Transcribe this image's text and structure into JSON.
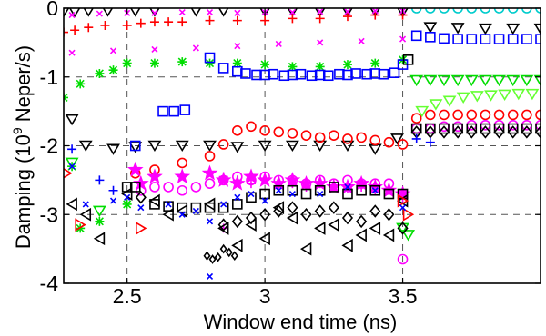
{
  "chart_data": {
    "type": "scatter",
    "title": "",
    "xlabel": "Window end time (ns)",
    "ylabel": "Damping (10",
    "ylabel_superscript": "9",
    "ylabel_suffix": " Neper/s)",
    "xlim": [
      2.27,
      4.0
    ],
    "ylim": [
      -4,
      0
    ],
    "xticks": [
      2.5,
      3,
      3.5
    ],
    "xtick_labels": [
      "2.5",
      "3",
      "3.5"
    ],
    "yticks": [
      0,
      -1,
      -2,
      -3,
      -4
    ],
    "ytick_labels": [
      "0",
      "-1",
      "-2",
      "-3",
      "-4"
    ],
    "grid": true,
    "legend": "none",
    "series": [
      {
        "marker": "triangle-down",
        "color": "#000000",
        "x": [
          2.27,
          2.31,
          2.36,
          2.43,
          2.53,
          2.6,
          2.75,
          2.85,
          3.0,
          3.1,
          3.2,
          3.3,
          3.4,
          3.5,
          3.6,
          3.7,
          3.8,
          3.9,
          4.0,
          2.3,
          2.35,
          2.45,
          2.53,
          2.6,
          2.7,
          2.8,
          2.9,
          3.0,
          3.1,
          3.2,
          3.3,
          3.4,
          3.48
        ],
        "y": [
          -0.05,
          -0.05,
          -0.04,
          -0.04,
          -0.04,
          -0.04,
          -0.04,
          -0.04,
          -0.04,
          -0.04,
          -0.04,
          -0.04,
          -0.04,
          -0.05,
          -0.28,
          -0.29,
          -0.3,
          -0.3,
          -0.3,
          -1.62,
          -2.0,
          -2.05,
          -2.02,
          -2.0,
          -2.0,
          -2.0,
          -2.02,
          -2.0,
          -2.0,
          -2.0,
          -2.0,
          -2.05,
          -1.9
        ]
      },
      {
        "marker": "plus",
        "color": "#ff0000",
        "x": [
          2.27,
          2.31,
          2.36,
          2.42,
          2.5,
          2.55,
          2.6,
          2.65,
          2.7,
          2.8,
          2.9,
          3.0,
          3.1,
          3.2,
          3.3,
          3.4,
          3.5
        ],
        "y": [
          -0.35,
          -0.32,
          -0.28,
          -0.25,
          -0.25,
          -0.22,
          -0.2,
          -0.2,
          -0.2,
          -0.18,
          -0.18,
          -0.18,
          -0.15,
          -0.15,
          -0.12,
          -0.1,
          -0.1
        ]
      },
      {
        "marker": "x",
        "color": "#ff00ff",
        "x": [
          2.3,
          2.4,
          2.5,
          2.6,
          2.7,
          2.8,
          2.9,
          3.0,
          3.1,
          3.2,
          3.3,
          3.4,
          3.5,
          2.3,
          2.45,
          2.6,
          2.75,
          2.9,
          3.05,
          3.2,
          3.35,
          3.5
        ],
        "y": [
          -0.1,
          -0.08,
          -0.07,
          -0.07,
          -0.06,
          -0.06,
          -0.07,
          -0.06,
          -0.06,
          -0.05,
          -0.05,
          -0.04,
          -0.04,
          -0.65,
          -0.62,
          -0.6,
          -0.58,
          -0.55,
          -0.52,
          -0.5,
          -0.48,
          -0.45
        ]
      },
      {
        "marker": "asterisk",
        "color": "#00dd00",
        "x": [
          2.27,
          2.33,
          2.4,
          2.45,
          2.5,
          2.6,
          2.7,
          2.8,
          2.9,
          3.0,
          3.1,
          3.2,
          3.3,
          3.4,
          3.5,
          2.3,
          2.33,
          2.4,
          2.5
        ],
        "y": [
          -1.3,
          -1.1,
          -0.95,
          -0.9,
          -0.8,
          -0.8,
          -0.78,
          -0.8,
          -0.8,
          -0.82,
          -0.85,
          -0.85,
          -0.82,
          -0.8,
          -0.75,
          -2.3,
          -3.2,
          -3.1,
          -2.85
        ]
      },
      {
        "marker": "square",
        "color": "#0000ff",
        "x": [
          2.63,
          2.67,
          2.71,
          2.8,
          2.85,
          2.9,
          2.93,
          2.97,
          3.0,
          3.03,
          3.07,
          3.1,
          3.13,
          3.17,
          3.2,
          3.23,
          3.27,
          3.3,
          3.33,
          3.37,
          3.4,
          3.43,
          3.47,
          3.5,
          3.55,
          3.6,
          3.65,
          3.7,
          3.75,
          3.8,
          3.85,
          3.9,
          3.95,
          4.0,
          2.53
        ],
        "y": [
          -1.5,
          -1.5,
          -1.48,
          -0.72,
          -0.87,
          -0.92,
          -0.95,
          -0.97,
          -0.97,
          -0.96,
          -0.98,
          -0.97,
          -0.96,
          -0.98,
          -0.97,
          -0.98,
          -0.96,
          -0.97,
          -0.95,
          -0.96,
          -0.95,
          -0.96,
          -0.94,
          -0.82,
          -0.4,
          -0.42,
          -0.44,
          -0.45,
          -0.45,
          -0.45,
          -0.45,
          -0.45,
          -0.45,
          -0.45,
          -2.0
        ]
      },
      {
        "marker": "circle",
        "color": "#00cccc",
        "x": [
          3.55,
          3.6,
          3.65,
          3.7,
          3.75,
          3.8,
          3.85,
          3.9,
          3.95,
          4.0
        ],
        "y": [
          0.0,
          0.0,
          0.0,
          0.0,
          0.0,
          0.0,
          0.0,
          0.0,
          0.0,
          0.0
        ]
      },
      {
        "marker": "triangle-down",
        "color": "#00dd00",
        "x": [
          3.55,
          3.6,
          3.65,
          3.7,
          3.75,
          3.8,
          3.85,
          3.9,
          3.95,
          4.0,
          3.5,
          3.52,
          2.3,
          2.4
        ],
        "y": [
          -1.05,
          -1.05,
          -1.05,
          -1.05,
          -1.05,
          -1.05,
          -1.05,
          -1.05,
          -1.05,
          -1.05,
          -3.2,
          -3.3,
          -2.25,
          -2.95
        ]
      },
      {
        "marker": "triangle-down",
        "color": "#66ff33",
        "x": [
          3.57,
          3.62,
          3.67,
          3.72,
          3.77,
          3.82,
          3.87,
          3.92,
          3.97
        ],
        "y": [
          -1.5,
          -1.4,
          -1.35,
          -1.3,
          -1.28,
          -1.27,
          -1.26,
          -1.25,
          -1.25
        ]
      },
      {
        "marker": "circle",
        "color": "#ff0000",
        "x": [
          2.53,
          2.6,
          2.7,
          2.8,
          2.85,
          2.9,
          2.95,
          3.0,
          3.05,
          3.1,
          3.15,
          3.2,
          3.25,
          3.3,
          3.35,
          3.4,
          3.45,
          3.5,
          3.55,
          3.6,
          3.65,
          3.7,
          3.75,
          3.8,
          3.85,
          3.9,
          3.95,
          4.0
        ],
        "y": [
          -2.4,
          -2.35,
          -2.25,
          -2.15,
          -1.98,
          -1.78,
          -1.72,
          -1.78,
          -1.8,
          -1.82,
          -1.85,
          -1.88,
          -1.85,
          -1.9,
          -1.88,
          -1.92,
          -1.95,
          -1.98,
          -1.6,
          -1.55,
          -1.55,
          -1.55,
          -1.55,
          -1.55,
          -1.55,
          -1.55,
          -1.55,
          -1.55
        ]
      },
      {
        "marker": "circle",
        "color": "#ff00ff",
        "x": [
          2.55,
          2.6,
          2.65,
          2.7,
          2.75,
          2.8,
          2.85,
          2.9,
          2.95,
          3.0,
          3.05,
          3.1,
          3.15,
          3.2,
          3.25,
          3.3,
          3.35,
          3.4,
          3.45,
          3.5,
          3.55,
          3.6,
          3.65,
          3.7,
          3.75,
          3.8,
          3.85,
          3.9,
          3.95,
          4.0,
          3.5
        ],
        "y": [
          -2.65,
          -2.6,
          -2.6,
          -2.65,
          -2.6,
          -2.55,
          -2.5,
          -2.45,
          -2.5,
          -2.45,
          -2.5,
          -2.5,
          -2.55,
          -2.5,
          -2.55,
          -2.5,
          -2.55,
          -2.55,
          -2.55,
          -2.7,
          -1.75,
          -1.75,
          -1.72,
          -1.72,
          -1.7,
          -1.7,
          -1.7,
          -1.7,
          -1.7,
          -1.7,
          -3.65
        ]
      },
      {
        "marker": "star",
        "color": "#ff00ff",
        "x": [
          2.53,
          2.6,
          2.7,
          2.8,
          2.85,
          2.9,
          2.95,
          3.0,
          3.05,
          3.1,
          3.15,
          3.2,
          3.25,
          3.3,
          3.35,
          3.4,
          3.45,
          3.5,
          2.55
        ],
        "y": [
          -2.35,
          -2.45,
          -2.45,
          -2.4,
          -2.5,
          -2.55,
          -2.45,
          -2.5,
          -2.55,
          -2.5,
          -2.55,
          -2.55,
          -2.6,
          -2.6,
          -2.55,
          -2.6,
          -2.65,
          -2.7,
          -2.55
        ]
      },
      {
        "marker": "plus",
        "color": "#ff00ff",
        "x": [
          2.85,
          2.9,
          2.95,
          3.0,
          3.05,
          3.1,
          3.15,
          3.2,
          3.25,
          3.3,
          3.35,
          3.4,
          3.45,
          3.5,
          2.85
        ],
        "y": [
          -2.45,
          -2.5,
          -2.55,
          -2.5,
          -2.6,
          -2.55,
          -2.6,
          -2.55,
          -2.6,
          -2.62,
          -2.6,
          -2.65,
          -2.65,
          -2.75,
          -3.2
        ]
      },
      {
        "marker": "square",
        "color": "#000000",
        "x": [
          2.53,
          2.6,
          2.65,
          2.7,
          2.75,
          2.8,
          2.85,
          2.9,
          2.95,
          3.0,
          3.05,
          3.1,
          3.15,
          3.2,
          3.25,
          3.3,
          3.35,
          3.4,
          3.45,
          3.5,
          3.52,
          3.55,
          3.6,
          3.65,
          3.7,
          3.75,
          3.8,
          3.85,
          3.9,
          3.95,
          4.0,
          2.5
        ],
        "y": [
          -2.6,
          -2.85,
          -2.88,
          -2.9,
          -2.9,
          -2.9,
          -2.9,
          -2.85,
          -2.75,
          -2.7,
          -2.65,
          -2.65,
          -2.7,
          -2.65,
          -2.6,
          -2.7,
          -2.65,
          -2.65,
          -2.7,
          -2.7,
          -0.75,
          -1.75,
          -1.75,
          -1.75,
          -1.75,
          -1.75,
          -1.75,
          -1.75,
          -1.75,
          -1.75,
          -1.75,
          -2.6
        ]
      },
      {
        "marker": "diamond",
        "color": "#000000",
        "x": [
          2.85,
          2.9,
          2.95,
          3.0,
          3.05,
          3.1,
          3.15,
          3.2,
          3.25,
          3.3,
          3.35,
          3.4,
          3.45,
          3.5,
          3.55,
          3.6,
          3.65,
          3.7,
          3.75,
          3.8,
          3.85,
          3.9,
          3.95,
          4.0,
          2.55
        ],
        "y": [
          -3.15,
          -3.1,
          -3.05,
          -3.0,
          -2.95,
          -2.9,
          -3.0,
          -2.95,
          -2.9,
          -3.05,
          -3.1,
          -2.95,
          -3.0,
          -3.2,
          -1.8,
          -1.8,
          -1.8,
          -1.8,
          -1.8,
          -1.8,
          -1.8,
          -1.8,
          -1.8,
          -1.8,
          -2.75
        ]
      },
      {
        "marker": "triangle-left",
        "color": "#000000",
        "x": [
          2.3,
          2.35,
          2.4,
          2.5,
          2.6,
          2.65,
          2.7,
          2.8,
          2.85,
          2.9,
          2.95,
          3.0,
          3.05,
          3.1,
          3.15,
          3.2,
          3.25,
          3.3,
          3.35,
          3.4,
          3.45,
          3.5
        ],
        "y": [
          -2.85,
          -3.0,
          -3.35,
          -2.7,
          -2.8,
          -3.0,
          -2.95,
          -2.85,
          -3.2,
          -3.45,
          -3.15,
          -3.35,
          -2.9,
          -3.05,
          -3.5,
          -3.2,
          -3.15,
          -3.45,
          -3.3,
          -3.2,
          -3.3,
          -2.8
        ]
      },
      {
        "marker": "diamond-small",
        "color": "#000000",
        "x": [
          2.79,
          2.81,
          2.83,
          2.85,
          2.87,
          2.89
        ],
        "y": [
          -3.6,
          -3.65,
          -3.62,
          -3.5,
          -3.55,
          -3.6
        ]
      },
      {
        "marker": "triangle-right",
        "color": "#ff0000",
        "x": [
          2.28,
          2.33,
          2.55,
          3.5,
          3.52
        ],
        "y": [
          -2.4,
          -3.15,
          -3.2,
          -2.8,
          -3.0
        ]
      },
      {
        "marker": "x",
        "color": "#0000ff",
        "x": [
          2.3,
          2.35,
          2.45,
          2.5,
          2.55,
          2.65,
          2.7,
          2.75,
          2.8,
          2.85,
          2.9,
          2.95,
          3.0,
          3.05,
          3.1,
          3.2,
          3.3,
          3.4,
          3.5,
          2.8
        ],
        "y": [
          -2.3,
          -2.85,
          -2.8,
          -2.75,
          -2.9,
          -2.85,
          -3.0,
          -2.95,
          -3.1,
          -2.85,
          -2.75,
          -2.7,
          -2.8,
          -2.65,
          -2.7,
          -2.7,
          -2.6,
          -2.65,
          -2.9,
          -3.9
        ]
      },
      {
        "marker": "plus",
        "color": "#0000ff",
        "x": [
          2.3,
          2.4,
          2.45,
          3.55,
          3.6
        ],
        "y": [
          -2.05,
          -2.5,
          -2.65,
          -1.9,
          -1.95
        ]
      }
    ]
  }
}
